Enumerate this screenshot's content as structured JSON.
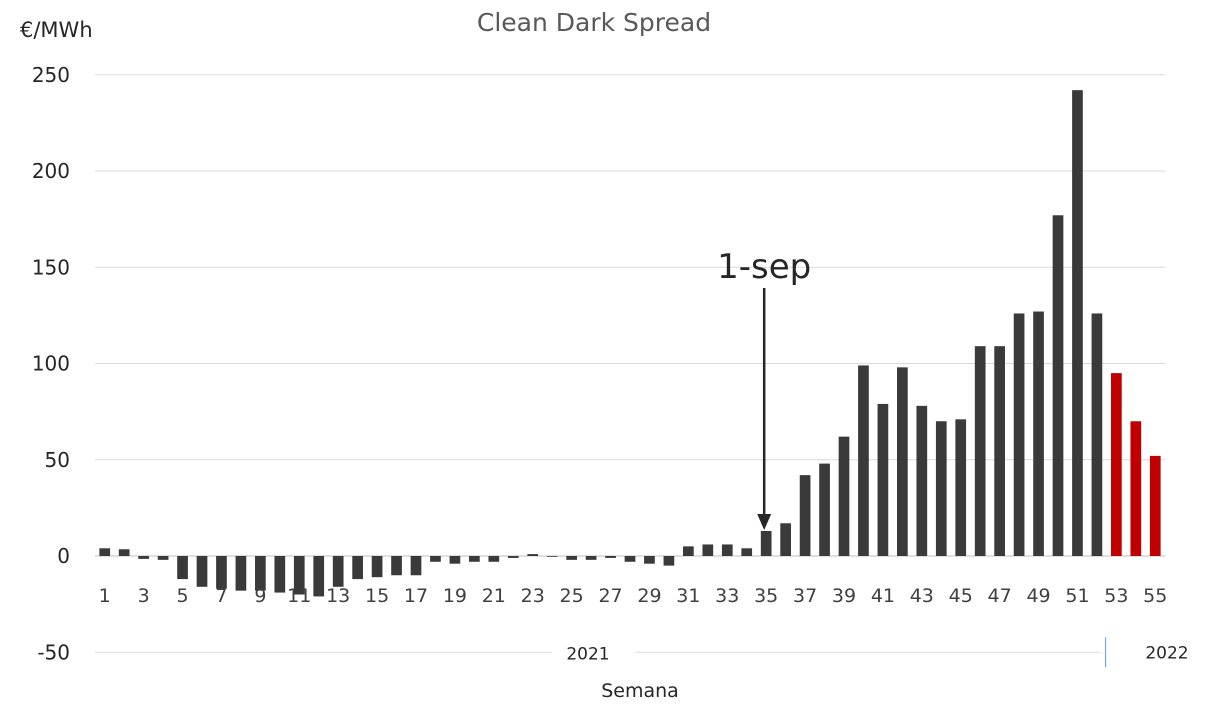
{
  "chart_data": {
    "type": "bar",
    "title": "Clean Dark Spread",
    "ylabel": "€/MWh",
    "xlabel": "Semana",
    "ylim": [
      -50,
      250
    ],
    "yticks": [
      -50,
      0,
      50,
      100,
      150,
      200,
      250
    ],
    "grid": true,
    "legend": "none",
    "categories": [
      1,
      2,
      3,
      4,
      5,
      6,
      7,
      8,
      9,
      10,
      11,
      12,
      13,
      14,
      15,
      16,
      17,
      18,
      19,
      20,
      21,
      22,
      23,
      24,
      25,
      26,
      27,
      28,
      29,
      30,
      31,
      32,
      33,
      34,
      35,
      36,
      37,
      38,
      39,
      40,
      41,
      42,
      43,
      44,
      45,
      46,
      47,
      48,
      49,
      50,
      51,
      52,
      53,
      54,
      55
    ],
    "tick_labels_shown": [
      1,
      3,
      5,
      7,
      9,
      11,
      13,
      15,
      17,
      19,
      21,
      23,
      25,
      27,
      29,
      31,
      33,
      35,
      37,
      39,
      41,
      43,
      45,
      47,
      49,
      51,
      53,
      55
    ],
    "values": [
      4,
      3.5,
      -1.5,
      -2,
      -12,
      -16,
      -17,
      -18,
      -18,
      -19,
      -20,
      -21,
      -16,
      -12,
      -11,
      -10,
      -10,
      -3,
      -4,
      -3,
      -3,
      -1,
      1,
      0,
      -2,
      -2,
      -1,
      -3,
      -4,
      -5,
      5,
      6,
      6,
      4,
      13,
      17,
      42,
      48,
      62,
      99,
      79,
      98,
      78,
      70,
      71,
      109,
      109,
      126,
      127,
      177,
      242,
      126,
      95,
      70,
      52
    ],
    "colors": {
      "bar": "#3a3a3a",
      "highlight": "#c00000",
      "grid": "#d9d9d9",
      "text": "#404040"
    },
    "highlight_from_category": 53,
    "group_labels": [
      "2021",
      "2022"
    ],
    "annotation": {
      "text": "1-sep",
      "category": 35
    }
  }
}
